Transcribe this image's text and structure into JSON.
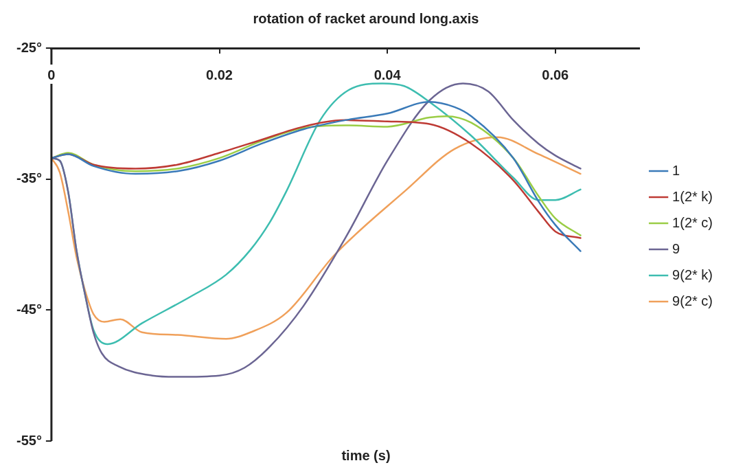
{
  "chart_data": {
    "type": "line",
    "title": "rotation of racket around long.axis",
    "xlabel": "time (s)",
    "xlim": [
      0,
      0.07
    ],
    "ylim": [
      -55,
      -25
    ],
    "xticks": [
      0,
      0.02,
      0.04,
      0.06
    ],
    "yticks": [
      {
        "value": -25,
        "label": "-25°"
      },
      {
        "value": -35,
        "label": "-35°"
      },
      {
        "value": -45,
        "label": "-45°"
      },
      {
        "value": -55,
        "label": "-55°"
      }
    ],
    "legend": "right",
    "marker": "none",
    "line_style": "solid",
    "series": [
      {
        "name": "1",
        "color": "#3a7ab8",
        "x": [
          0,
          0.002,
          0.005,
          0.01,
          0.015,
          0.02,
          0.025,
          0.03,
          0.035,
          0.04,
          0.045,
          0.048,
          0.05,
          0.055,
          0.058,
          0.06,
          0.063
        ],
        "values": [
          -33.4,
          -33.1,
          -34,
          -34.6,
          -34.4,
          -33.6,
          -32.3,
          -31.2,
          -30.5,
          -30,
          -29.1,
          -29.5,
          -30.2,
          -33.4,
          -36.7,
          -38.5,
          -40.5
        ]
      },
      {
        "name": "1(2* k)",
        "color": "#be3a34",
        "x": [
          0,
          0.002,
          0.005,
          0.01,
          0.015,
          0.02,
          0.025,
          0.03,
          0.035,
          0.04,
          0.045,
          0.05,
          0.055,
          0.058,
          0.06,
          0.063
        ],
        "values": [
          -33.4,
          -33.1,
          -33.9,
          -34.2,
          -33.9,
          -33,
          -32,
          -31,
          -30.5,
          -30.6,
          -30.8,
          -32.3,
          -35.1,
          -37.5,
          -39,
          -39.5
        ]
      },
      {
        "name": "1(2* c)",
        "color": "#9acd45",
        "x": [
          0,
          0.002,
          0.005,
          0.01,
          0.015,
          0.02,
          0.025,
          0.03,
          0.035,
          0.04,
          0.045,
          0.047,
          0.05,
          0.055,
          0.058,
          0.06,
          0.063
        ],
        "values": [
          -33.4,
          -33,
          -33.9,
          -34.4,
          -34.2,
          -33.4,
          -32.1,
          -31.1,
          -30.9,
          -31,
          -30.3,
          -30.2,
          -30.7,
          -33.4,
          -36.3,
          -38,
          -39.3
        ]
      },
      {
        "name": "9",
        "color": "#6b6593",
        "x": [
          0,
          0.001,
          0.002,
          0.003,
          0.004,
          0.005,
          0.006,
          0.008,
          0.012,
          0.015,
          0.02,
          0.023,
          0.026,
          0.03,
          0.035,
          0.04,
          0.045,
          0.049,
          0.052,
          0.055,
          0.058,
          0.06,
          0.063
        ],
        "values": [
          -33.4,
          -33.6,
          -36,
          -40.5,
          -43.8,
          -46.7,
          -48.3,
          -49.3,
          -50,
          -50.1,
          -50,
          -49.4,
          -47.8,
          -44.7,
          -39.5,
          -33.6,
          -29,
          -27.7,
          -28.3,
          -30.5,
          -32.3,
          -33.2,
          -34.2
        ]
      },
      {
        "name": "9(2* k)",
        "color": "#3dbdb0",
        "x": [
          0,
          0.001,
          0.002,
          0.003,
          0.004,
          0.005,
          0.0067,
          0.0108,
          0.0165,
          0.0208,
          0.0237,
          0.026,
          0.028,
          0.032,
          0.0354,
          0.0394,
          0.042,
          0.045,
          0.05,
          0.055,
          0.058,
          0.06,
          0.063
        ],
        "values": [
          -33.4,
          -33.6,
          -36,
          -40.5,
          -43.8,
          -46.5,
          -47.6,
          -46,
          -44,
          -42.3,
          -40.4,
          -38.3,
          -35.9,
          -30.5,
          -28.2,
          -27.7,
          -27.9,
          -29.1,
          -31.7,
          -34.9,
          -36.6,
          -36.6,
          -35.8
        ]
      },
      {
        "name": "9(2* c)",
        "color": "#f0a05a",
        "x": [
          0,
          0.001,
          0.002,
          0.003,
          0.004,
          0.005,
          0.0063,
          0.0082,
          0.0108,
          0.015,
          0.0208,
          0.0237,
          0.028,
          0.0337,
          0.0423,
          0.048,
          0.0531,
          0.058,
          0.063
        ],
        "values": [
          -33.4,
          -34.5,
          -37.5,
          -41,
          -43.5,
          -45.3,
          -45.9,
          -45.7,
          -46.7,
          -46.9,
          -47.2,
          -46.7,
          -45.2,
          -40.8,
          -35.8,
          -32.7,
          -31.8,
          -33.1,
          -34.6
        ]
      }
    ]
  }
}
